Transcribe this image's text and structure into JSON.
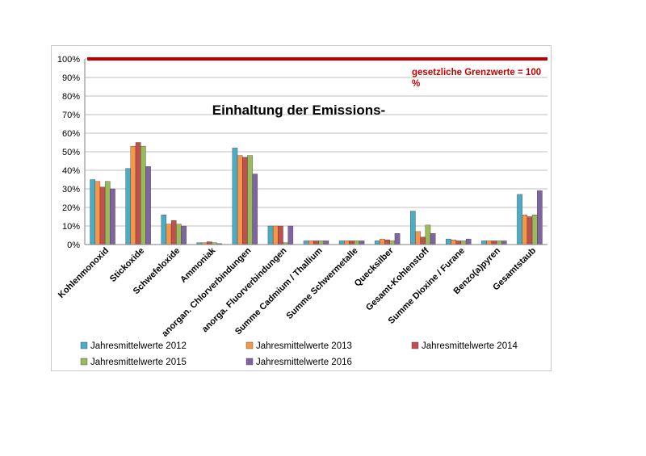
{
  "chart_data": {
    "type": "bar",
    "title": "Einhaltung der Emissions-",
    "xlabel": "",
    "ylabel": "",
    "ylim": [
      0,
      100
    ],
    "yticks": [
      "0%",
      "10%",
      "20%",
      "30%",
      "40%",
      "50%",
      "60%",
      "70%",
      "80%",
      "90%",
      "100%"
    ],
    "grid": true,
    "legend_position": "bottom",
    "categories": [
      "Kohlenmonoxid",
      "Stickoxide",
      "Schwefeloxide",
      "Ammoniak",
      "anorgan. Chlorverbindungen",
      "anorga. Fluorverbindungen",
      "Summe Cadmium / Thallium",
      "Summe Schwermetalle",
      "Quecksilber",
      "Gesamt-Kohlenstoff",
      "Summe Dioxine / Furane",
      "Benzo(a)pyren",
      "Gesamtstaub"
    ],
    "series": [
      {
        "name": "Jahresmittelwerte 2012",
        "color": "#4bacc6",
        "values": [
          35,
          41,
          16,
          1,
          52,
          10,
          2,
          2,
          2,
          18,
          3,
          2,
          27
        ]
      },
      {
        "name": "Jahresmittelwerte 2013",
        "color": "#f79646",
        "values": [
          34,
          53,
          11,
          1,
          48,
          10,
          2,
          2,
          3,
          7,
          2.5,
          2,
          16
        ]
      },
      {
        "name": "Jahresmittelwerte 2014",
        "color": "#c0504d",
        "values": [
          31,
          55,
          13,
          1.5,
          47,
          10,
          2,
          2,
          2.5,
          4,
          2,
          2,
          15
        ]
      },
      {
        "name": "Jahresmittelwerte 2015",
        "color": "#9bbb59",
        "values": [
          34,
          53,
          11,
          1,
          48,
          1,
          2,
          2,
          2,
          10.5,
          2,
          2,
          16
        ]
      },
      {
        "name": "Jahresmittelwerte 2016",
        "color": "#8064a2",
        "values": [
          30,
          42,
          10,
          0.5,
          38,
          10,
          2,
          2,
          6,
          6,
          3,
          2,
          29
        ]
      }
    ],
    "reference_line": {
      "value": 100,
      "label": "gesetzliche Grenzwerte = 100 %",
      "color": "#c00000"
    }
  }
}
